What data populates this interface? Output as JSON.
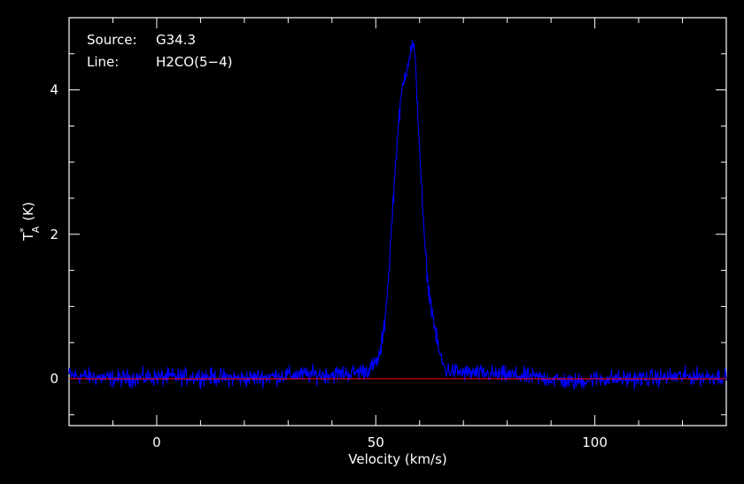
{
  "chart_data": {
    "type": "line",
    "title": "",
    "annotations": [
      {
        "key": "Source:",
        "value": "G34.3"
      },
      {
        "key": "Line:",
        "value": "H2CO(5−4)"
      }
    ],
    "xlabel": "Velocity (km/s)",
    "ylabel": "T",
    "ylabel_superscript": "*",
    "ylabel_subscript": "A",
    "ylabel_unit": "(K)",
    "xlim": [
      -20,
      130
    ],
    "ylim": [
      -0.65,
      5.0
    ],
    "xticks": [
      0,
      50,
      100
    ],
    "xtick_labels": [
      "0",
      "50",
      "100"
    ],
    "yticks": [
      0,
      2,
      4
    ],
    "ytick_labels": [
      "0",
      "2",
      "4"
    ],
    "grid": false,
    "background": "#000000",
    "axis_color": "#ffffff",
    "series": [
      {
        "color": "#0000ff",
        "x": [
          -20,
          -10,
          0,
          10,
          20,
          30,
          40,
          45,
          48,
          50,
          51,
          52,
          53,
          54,
          55,
          56,
          57,
          58,
          58.5,
          59,
          60,
          61,
          62,
          63,
          64,
          65,
          66,
          70,
          80,
          90,
          95,
          100,
          110,
          120,
          130
        ],
        "values": [
          0.05,
          0.0,
          0.02,
          0.03,
          0.0,
          0.05,
          0.06,
          0.08,
          0.12,
          0.2,
          0.35,
          0.75,
          1.5,
          2.5,
          3.4,
          4.0,
          4.3,
          4.55,
          4.65,
          4.4,
          3.2,
          2.0,
          1.25,
          0.9,
          0.5,
          0.25,
          0.12,
          0.08,
          0.05,
          0.0,
          -0.05,
          0.0,
          0.0,
          0.03,
          0.03
        ]
      },
      {
        "color": "#ff0000",
        "x": [
          -20,
          130
        ],
        "values": [
          0,
          0
        ]
      }
    ]
  }
}
